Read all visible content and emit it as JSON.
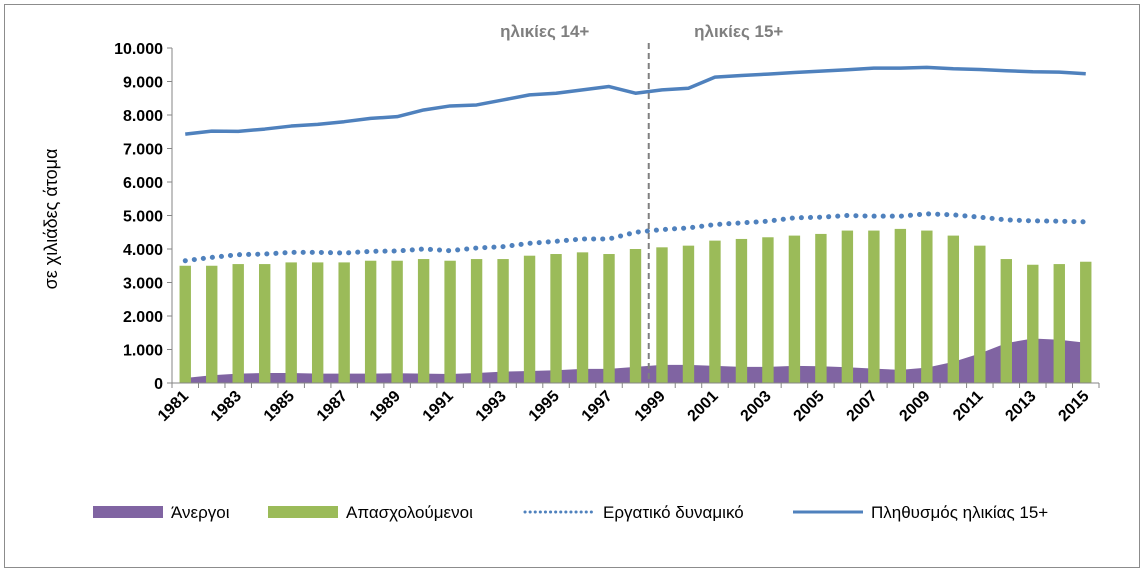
{
  "chart_data": {
    "type": "bar",
    "ylabel": "σε χιλιάδες άτομα",
    "ylim": [
      0,
      10000
    ],
    "yticks": [
      "0",
      "1.000",
      "2.000",
      "3.000",
      "4.000",
      "5.000",
      "6.000",
      "7.000",
      "8.000",
      "9.000",
      "10.000"
    ],
    "x": [
      1981,
      1982,
      1983,
      1984,
      1985,
      1986,
      1987,
      1988,
      1989,
      1990,
      1991,
      1992,
      1993,
      1994,
      1995,
      1996,
      1997,
      1998,
      1999,
      2000,
      2001,
      2002,
      2003,
      2004,
      2005,
      2006,
      2007,
      2008,
      2009,
      2010,
      2011,
      2012,
      2013,
      2014,
      2015
    ],
    "xtick_labels": [
      "1981",
      "1983",
      "1985",
      "1987",
      "1989",
      "1991",
      "1993",
      "1995",
      "1997",
      "1999",
      "2001",
      "2003",
      "2005",
      "2007",
      "2009",
      "2011",
      "2013",
      "2015"
    ],
    "annotations": {
      "left": "ηλικίες 14+",
      "right": "ηλικίες 15+",
      "divider_between": [
        1998,
        1999
      ]
    },
    "grid": false,
    "legend_position": "bottom",
    "series": [
      {
        "name": "Άνεργοι",
        "type": "area",
        "color": "#8064a2",
        "values": [
          150,
          230,
          280,
          300,
          300,
          280,
          280,
          280,
          290,
          280,
          270,
          300,
          340,
          360,
          380,
          420,
          420,
          480,
          540,
          540,
          510,
          480,
          480,
          510,
          500,
          470,
          430,
          390,
          460,
          630,
          880,
          1190,
          1330,
          1290,
          1200
        ]
      },
      {
        "name": "Απασχολούμενοι",
        "type": "bar",
        "color": "#9bbb59",
        "values": [
          3500,
          3500,
          3550,
          3550,
          3600,
          3600,
          3600,
          3650,
          3650,
          3700,
          3650,
          3700,
          3700,
          3800,
          3850,
          3900,
          3850,
          4000,
          4050,
          4100,
          4250,
          4300,
          4350,
          4400,
          4450,
          4550,
          4550,
          4600,
          4550,
          4400,
          4100,
          3700,
          3530,
          3550,
          3620
        ]
      },
      {
        "name": "Εργατικό δυναμικό",
        "type": "line-dotted",
        "color": "#4f81bd",
        "values": [
          3650,
          3750,
          3830,
          3850,
          3900,
          3900,
          3880,
          3930,
          3940,
          4000,
          3950,
          4030,
          4070,
          4170,
          4230,
          4300,
          4300,
          4500,
          4580,
          4630,
          4730,
          4780,
          4830,
          4930,
          4950,
          5000,
          4980,
          4980,
          5050,
          5020,
          4950,
          4870,
          4840,
          4830,
          4810
        ]
      },
      {
        "name": "Πληθυσμός ηλικίας 15+",
        "type": "line",
        "color": "#4f81bd",
        "values": [
          7430,
          7520,
          7510,
          7580,
          7670,
          7720,
          7800,
          7900,
          7950,
          8150,
          8270,
          8300,
          8450,
          8600,
          8650,
          8750,
          8850,
          8650,
          8750,
          8800,
          9130,
          9180,
          9220,
          9270,
          9310,
          9350,
          9400,
          9400,
          9420,
          9380,
          9360,
          9320,
          9290,
          9280,
          9230
        ]
      }
    ]
  }
}
